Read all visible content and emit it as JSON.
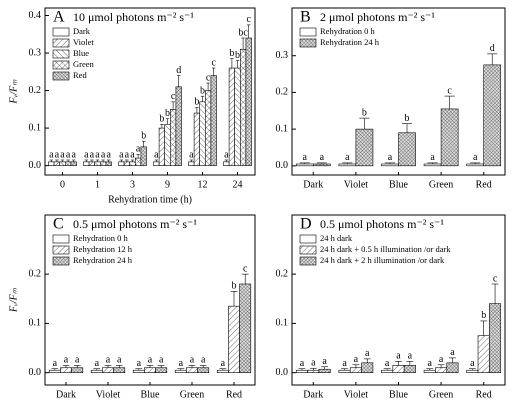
{
  "chart_data": [
    {
      "type": "bar",
      "panel": "A",
      "title": "10 μmol photons m⁻² s⁻¹",
      "ylabel": "Fᵥ/Fₘ",
      "xlabel": "Rehydration time (h)",
      "categories": [
        "0",
        "1",
        "3",
        "9",
        "12",
        "24"
      ],
      "series": [
        {
          "name": "Dark",
          "hatch": "none",
          "values": [
            0.01,
            0.01,
            0.01,
            0.01,
            0.01,
            0.01
          ],
          "errors": [
            0.005,
            0.005,
            0.005,
            0.005,
            0.005,
            0.005
          ],
          "letters": [
            "a",
            "a",
            "a",
            "a",
            "a",
            "a"
          ]
        },
        {
          "name": "Violet",
          "hatch": "slash",
          "values": [
            0.01,
            0.01,
            0.01,
            0.1,
            0.14,
            0.26
          ],
          "errors": [
            0.005,
            0.005,
            0.005,
            0.01,
            0.015,
            0.025
          ],
          "letters": [
            "a",
            "a",
            "a",
            "b",
            "b",
            "b"
          ]
        },
        {
          "name": "Blue",
          "hatch": "backslash",
          "values": [
            0.01,
            0.01,
            0.01,
            0.11,
            0.17,
            0.26
          ],
          "errors": [
            0.005,
            0.005,
            0.005,
            0.015,
            0.015,
            0.02
          ],
          "letters": [
            "a",
            "a",
            "a",
            "b",
            "b",
            "b"
          ]
        },
        {
          "name": "Green",
          "hatch": "cross",
          "values": [
            0.01,
            0.01,
            0.02,
            0.15,
            0.2,
            0.31
          ],
          "errors": [
            0.005,
            0.005,
            0.01,
            0.02,
            0.02,
            0.03
          ],
          "letters": [
            "a",
            "a",
            "a",
            "c",
            "c",
            "bc"
          ]
        },
        {
          "name": "Red",
          "hatch": "dense",
          "values": [
            0.01,
            0.01,
            0.05,
            0.21,
            0.24,
            0.34
          ],
          "errors": [
            0.005,
            0.005,
            0.015,
            0.03,
            0.02,
            0.035
          ],
          "letters": [
            "a",
            "a",
            "b",
            "d",
            "c",
            "c"
          ]
        }
      ],
      "ylim": [
        -0.025,
        0.42
      ],
      "yticks": [
        {
          "value": 0,
          "label": "0.0"
        },
        {
          "value": 0.1,
          "label": "0.1"
        },
        {
          "value": 0.2,
          "label": "0.2"
        },
        {
          "value": 0.3,
          "label": "0.3"
        },
        {
          "value": 0.4,
          "label": "0.4"
        }
      ]
    },
    {
      "type": "bar",
      "panel": "B",
      "title": "2 μmol photons m⁻² s⁻¹",
      "categories": [
        "Dark",
        "Violet",
        "Blue",
        "Green",
        "Red"
      ],
      "series": [
        {
          "name": "Rehydration 0 h",
          "hatch": "none",
          "values": [
            0.005,
            0.005,
            0.005,
            0.005,
            0.005
          ],
          "errors": [
            0.003,
            0.003,
            0.003,
            0.003,
            0.003
          ],
          "letters": [
            "a",
            "a",
            "a",
            "a",
            "a"
          ]
        },
        {
          "name": "Rehydration 24 h",
          "hatch": "dense",
          "values": [
            0.005,
            0.1,
            0.09,
            0.155,
            0.275
          ],
          "errors": [
            0.003,
            0.03,
            0.025,
            0.035,
            0.03
          ],
          "letters": [
            "a",
            "b",
            "b",
            "c",
            "d"
          ]
        }
      ],
      "ylim": [
        -0.025,
        0.43
      ],
      "yticks": [
        {
          "value": 0,
          "label": "0.0"
        },
        {
          "value": 0.1,
          "label": "0.1"
        },
        {
          "value": 0.2,
          "label": "0.2"
        },
        {
          "value": 0.3,
          "label": "0.3"
        }
      ]
    },
    {
      "type": "bar",
      "panel": "C",
      "title": "0.5 μmol photons m⁻² s⁻¹",
      "ylabel": "Fᵥ/Fₘ",
      "categories": [
        "Dark",
        "Violet",
        "Blue",
        "Green",
        "Red"
      ],
      "series": [
        {
          "name": "Rehydration 0 h",
          "hatch": "none",
          "values": [
            0.005,
            0.005,
            0.005,
            0.005,
            0.005
          ],
          "errors": [
            0.003,
            0.003,
            0.003,
            0.003,
            0.003
          ],
          "letters": [
            "a",
            "a",
            "a",
            "a",
            "a"
          ]
        },
        {
          "name": "Rehydration 12 h",
          "hatch": "slash",
          "values": [
            0.01,
            0.01,
            0.01,
            0.01,
            0.135
          ],
          "errors": [
            0.005,
            0.005,
            0.005,
            0.005,
            0.03
          ],
          "letters": [
            "a",
            "a",
            "a",
            "a",
            "b"
          ]
        },
        {
          "name": "Rehydration 24 h",
          "hatch": "dense",
          "values": [
            0.01,
            0.01,
            0.01,
            0.01,
            0.18
          ],
          "errors": [
            0.005,
            0.005,
            0.005,
            0.005,
            0.02
          ],
          "letters": [
            "a",
            "a",
            "a",
            "a",
            "c"
          ]
        }
      ],
      "ylim": [
        -0.025,
        0.32
      ],
      "yticks": [
        {
          "value": 0,
          "label": "0.0"
        },
        {
          "value": 0.1,
          "label": "0.1"
        },
        {
          "value": 0.2,
          "label": "0.2"
        }
      ]
    },
    {
      "type": "bar",
      "panel": "D",
      "title": "0.5 μmol photons m⁻² s⁻¹",
      "categories": [
        "Dark",
        "Violet",
        "Blue",
        "Green",
        "Red"
      ],
      "series": [
        {
          "name": "24 h dark",
          "hatch": "none",
          "values": [
            0.005,
            0.005,
            0.005,
            0.005,
            0.005
          ],
          "errors": [
            0.003,
            0.003,
            0.003,
            0.003,
            0.003
          ],
          "letters": [
            "a",
            "a",
            "a",
            "a",
            "a"
          ]
        },
        {
          "name": "24 h dark + 0.5 h illumination /or dark",
          "hatch": "slash",
          "values": [
            0.005,
            0.01,
            0.015,
            0.01,
            0.075
          ],
          "errors": [
            0.004,
            0.006,
            0.008,
            0.006,
            0.03
          ],
          "letters": [
            "a",
            "a",
            "a",
            "a",
            "b"
          ]
        },
        {
          "name": "24 h dark + 2 h illumination /or dark",
          "hatch": "dense",
          "values": [
            0.007,
            0.02,
            0.015,
            0.02,
            0.14
          ],
          "errors": [
            0.005,
            0.008,
            0.008,
            0.01,
            0.04
          ],
          "letters": [
            "a",
            "a",
            "a",
            "a",
            "c"
          ]
        }
      ],
      "ylim": [
        -0.025,
        0.32
      ],
      "yticks": [
        {
          "value": 0,
          "label": "0.0"
        },
        {
          "value": 0.1,
          "label": "0.1"
        },
        {
          "value": 0.2,
          "label": "0.2"
        }
      ]
    }
  ]
}
